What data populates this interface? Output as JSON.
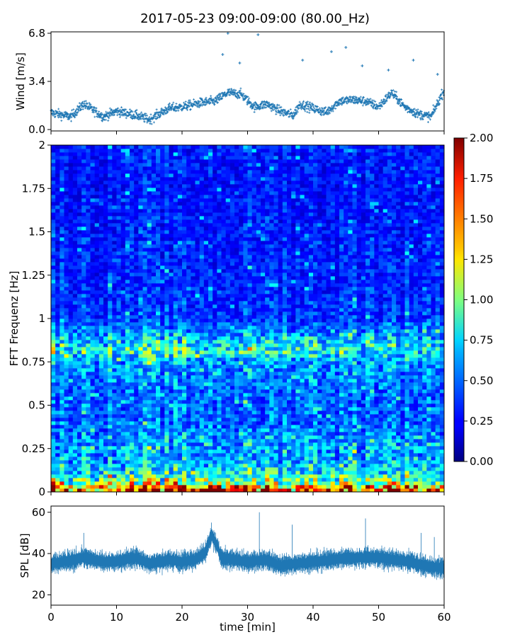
{
  "title": "2017-05-23 09:00-09:00 (80.00_Hz)",
  "chart_data": [
    {
      "type": "scatter",
      "panel": "wind",
      "ylabel": "Wind [m/s]",
      "ylim": [
        -0.1,
        6.9
      ],
      "yticks": [
        0.0,
        3.4,
        6.8
      ],
      "ytick_labels": [
        "0.0",
        "3.4",
        "6.8"
      ],
      "xlim": [
        0,
        60
      ],
      "marker": "+",
      "color": "#1f77b4",
      "series_summary": {
        "baseline": [
          [
            0,
            1.2
          ],
          [
            3,
            0.9
          ],
          [
            5,
            1.8
          ],
          [
            8,
            0.9
          ],
          [
            10,
            1.3
          ],
          [
            13,
            1.0
          ],
          [
            15,
            0.7
          ],
          [
            18,
            1.5
          ],
          [
            20,
            1.6
          ],
          [
            23,
            1.9
          ],
          [
            25,
            2.0
          ],
          [
            27,
            2.6
          ],
          [
            29,
            2.5
          ],
          [
            31,
            1.6
          ],
          [
            33,
            1.8
          ],
          [
            35,
            1.3
          ],
          [
            37,
            1.0
          ],
          [
            38,
            1.8
          ],
          [
            40,
            1.5
          ],
          [
            42,
            1.2
          ],
          [
            44,
            2.0
          ],
          [
            46,
            2.1
          ],
          [
            48,
            2.0
          ],
          [
            50,
            1.6
          ],
          [
            52,
            2.6
          ],
          [
            54,
            1.6
          ],
          [
            56,
            1.1
          ],
          [
            58,
            0.9
          ],
          [
            60,
            2.8
          ]
        ],
        "peaks": [
          [
            26.2,
            5.3
          ],
          [
            27.0,
            6.8
          ],
          [
            28.8,
            4.7
          ],
          [
            31.6,
            6.7
          ],
          [
            38.4,
            4.9
          ],
          [
            42.8,
            5.5
          ],
          [
            45.0,
            5.8
          ],
          [
            47.5,
            4.5
          ],
          [
            51.5,
            4.2
          ],
          [
            55.3,
            4.9
          ],
          [
            59.0,
            3.9
          ]
        ]
      }
    },
    {
      "type": "heatmap",
      "panel": "spectrogram",
      "ylabel": "FFT Frequenz [Hz]",
      "ylim": [
        0,
        2
      ],
      "yticks": [
        0,
        0.25,
        0.5,
        0.75,
        1,
        1.25,
        1.5,
        1.75,
        2
      ],
      "ytick_labels": [
        "0",
        "0.25",
        "0.5",
        "0.75",
        "1",
        "1.25",
        "1.5",
        "1.75",
        "2"
      ],
      "xlim": [
        0,
        60
      ],
      "colormap": "jet",
      "clim": [
        0.0,
        2.0
      ],
      "colorbar_ticks": [
        "0.00",
        "0.25",
        "0.50",
        "0.75",
        "1.00",
        "1.25",
        "1.50",
        "1.75",
        "2.00"
      ],
      "colorbar_values": [
        0.0,
        0.25,
        0.5,
        0.75,
        1.0,
        1.25,
        1.5,
        1.75,
        2.0
      ],
      "intensity_profile": [
        [
          0.0,
          1.9
        ],
        [
          0.02,
          1.6
        ],
        [
          0.05,
          1.1
        ],
        [
          0.1,
          0.75
        ],
        [
          0.2,
          0.55
        ],
        [
          0.25,
          0.6
        ],
        [
          0.4,
          0.45
        ],
        [
          0.55,
          0.45
        ],
        [
          0.75,
          0.55
        ],
        [
          0.82,
          0.8
        ],
        [
          0.86,
          0.7
        ],
        [
          1.0,
          0.35
        ],
        [
          1.25,
          0.32
        ],
        [
          1.5,
          0.3
        ],
        [
          1.75,
          0.28
        ],
        [
          2.0,
          0.3
        ]
      ]
    },
    {
      "type": "area",
      "panel": "spl",
      "ylabel": "SPL [dB]",
      "xlabel": "time [min]",
      "ylim": [
        15,
        63
      ],
      "yticks": [
        20,
        40,
        60
      ],
      "ytick_labels": [
        "20",
        "40",
        "60"
      ],
      "xlim": [
        0,
        60
      ],
      "xticks": [
        0,
        10,
        20,
        30,
        40,
        50,
        60
      ],
      "xtick_labels": [
        "0",
        "10",
        "20",
        "30",
        "40",
        "50",
        "60"
      ],
      "color": "#1f77b4",
      "center": [
        [
          0,
          35
        ],
        [
          5,
          38
        ],
        [
          8,
          36
        ],
        [
          10,
          36
        ],
        [
          13,
          38
        ],
        [
          15,
          35
        ],
        [
          18,
          37
        ],
        [
          20,
          36
        ],
        [
          22,
          37
        ],
        [
          23.5,
          40
        ],
        [
          24.5,
          49
        ],
        [
          25.2,
          45
        ],
        [
          26,
          38
        ],
        [
          28,
          37
        ],
        [
          30,
          36
        ],
        [
          33,
          37
        ],
        [
          35,
          34
        ],
        [
          37,
          35
        ],
        [
          40,
          36
        ],
        [
          43,
          37
        ],
        [
          45,
          38
        ],
        [
          47,
          38
        ],
        [
          50,
          38
        ],
        [
          52,
          37
        ],
        [
          55,
          36
        ],
        [
          57,
          34
        ],
        [
          60,
          33
        ]
      ],
      "spread": 6,
      "spikes": [
        [
          5.0,
          50
        ],
        [
          24.5,
          55
        ],
        [
          31.8,
          60
        ],
        [
          36.8,
          54
        ],
        [
          48.0,
          57
        ],
        [
          56.5,
          50
        ],
        [
          58.5,
          48
        ]
      ]
    }
  ]
}
